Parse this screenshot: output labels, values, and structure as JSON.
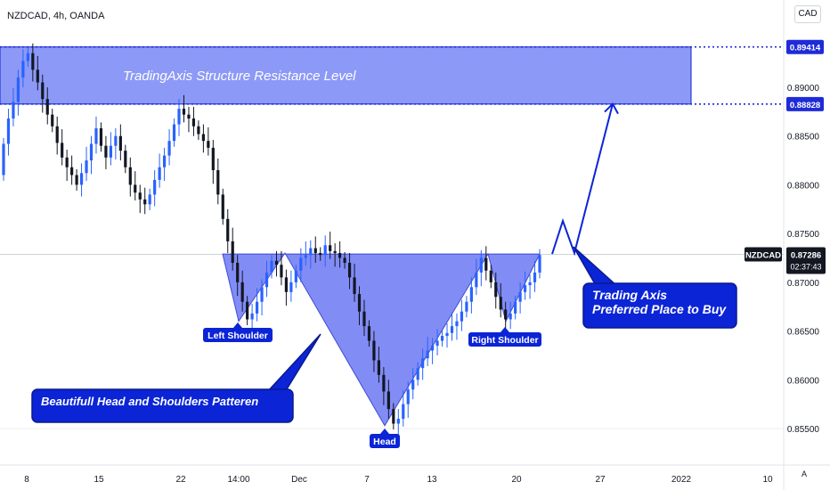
{
  "header": {
    "symbol_line": "NZDCAD, 4h, OANDA",
    "currency": "CAD",
    "auto_label": "A"
  },
  "colors": {
    "up": "#2962ff",
    "down": "#131722",
    "zone": "#6f7ff5",
    "pattern": "#5865f2",
    "dark_blue": "#0b24d6",
    "price_line": "#1e2bd8"
  },
  "annotations": {
    "resistance": "TradingAxis Structure Resistance Level",
    "pattern_label": "Beautifull Head and Shoulders Patteren",
    "buy_line1": "Trading Axis",
    "buy_line2": "Preferred Place to Buy",
    "left_shoulder": "Left Shoulder",
    "head": "Head",
    "right_shoulder": "Right Shoulder"
  },
  "chart_data": {
    "type": "candlestick",
    "symbol": "NZDCAD",
    "timeframe": "4h",
    "source": "OANDA",
    "ylim": [
      0.8535,
      0.8963
    ],
    "y_ticks": [
      "0.89000",
      "0.88500",
      "0.88000",
      "0.87500",
      "0.87000",
      "0.86500",
      "0.86000",
      "0.85500"
    ],
    "x_ticks": [
      "8",
      "15",
      "22",
      "14:00",
      "Dec",
      "7",
      "13",
      "20",
      "27",
      "2022",
      "10"
    ],
    "price_labels": [
      {
        "label": "0.89414",
        "value": 0.89414
      },
      {
        "label": "0.88828",
        "value": 0.88828
      }
    ],
    "current": {
      "symbol": "NZDCAD",
      "price": "0.87286",
      "value": 0.87286,
      "countdown": "02:37:43"
    },
    "resistance_zone": [
      0.88828,
      0.89414
    ],
    "pattern_points": [
      0.8729,
      0.866,
      0.873,
      0.8553,
      0.8729,
      0.866,
      0.8729
    ],
    "projection": [
      0.8729,
      0.8763,
      0.873,
      0.8883
    ],
    "closes": [
      0.8842,
      0.8868,
      0.8885,
      0.891,
      0.8927,
      0.8935,
      0.8918,
      0.8905,
      0.8888,
      0.8872,
      0.886,
      0.8843,
      0.8828,
      0.8818,
      0.881,
      0.88,
      0.8812,
      0.8825,
      0.8842,
      0.8858,
      0.884,
      0.8828,
      0.884,
      0.885,
      0.8835,
      0.8818,
      0.88,
      0.8792,
      0.8785,
      0.878,
      0.879,
      0.8805,
      0.8818,
      0.883,
      0.8845,
      0.8862,
      0.8878,
      0.8872,
      0.8868,
      0.886,
      0.8852,
      0.8845,
      0.8838,
      0.8815,
      0.879,
      0.8765,
      0.8742,
      0.872,
      0.87,
      0.868,
      0.8662,
      0.8668,
      0.868,
      0.8695,
      0.871,
      0.8722,
      0.8718,
      0.8705,
      0.869,
      0.87,
      0.8712,
      0.8725,
      0.8728,
      0.8735,
      0.873,
      0.8728,
      0.8738,
      0.8732,
      0.873,
      0.8725,
      0.872,
      0.8705,
      0.8688,
      0.867,
      0.8655,
      0.864,
      0.862,
      0.8605,
      0.8588,
      0.857,
      0.8555,
      0.856,
      0.8575,
      0.859,
      0.86,
      0.8612,
      0.8622,
      0.863,
      0.8635,
      0.864,
      0.8645,
      0.8648,
      0.8655,
      0.866,
      0.867,
      0.868,
      0.8695,
      0.871,
      0.8725,
      0.8712,
      0.87,
      0.8685,
      0.8672,
      0.8662,
      0.8668,
      0.868,
      0.869,
      0.8697,
      0.87,
      0.871,
      0.8728
    ]
  }
}
